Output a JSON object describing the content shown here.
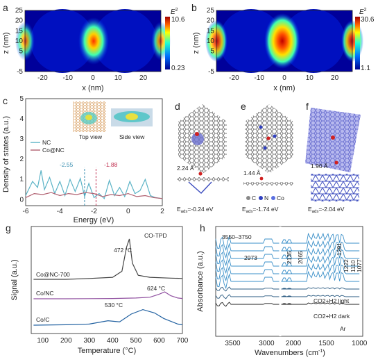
{
  "panels": {
    "a": {
      "label": "a",
      "xlabel": "x (nm)",
      "ylabel": "z (nm)",
      "xticks": [
        "-20",
        "-10",
        "0",
        "10",
        "20"
      ],
      "yticks": [
        "25",
        "20",
        "15",
        "10",
        "5",
        "-5"
      ],
      "colorbar": {
        "title": "E",
        "title_sup": "2",
        "max": "10.6",
        "min": "0.23"
      }
    },
    "b": {
      "label": "b",
      "xlabel": "x (nm)",
      "ylabel": "z (nm)",
      "xticks": [
        "-20",
        "-10",
        "0",
        "10",
        "20"
      ],
      "yticks": [
        "25",
        "20",
        "15",
        "10",
        "5",
        "-5"
      ],
      "colorbar": {
        "title": "E",
        "title_sup": "2",
        "max": "30.6",
        "min": "1.1"
      }
    },
    "c": {
      "label": "c",
      "xlabel": "Energy (eV)",
      "ylabel": "Density of states (a.u.)",
      "xticks": [
        "-6",
        "-4",
        "-2",
        "0",
        "2"
      ],
      "yticks": [
        "5",
        "4",
        "3",
        "2",
        "1",
        "0"
      ],
      "legend": [
        "NC",
        "Co@NC"
      ],
      "annot_nc": "-2.55",
      "annot_co": "-1.88",
      "top_view": "Top view",
      "side_view": "Side view"
    },
    "d": {
      "label": "d",
      "distance": "2.24 Å",
      "eads": "=-0.24 eV"
    },
    "e": {
      "label": "e",
      "distance": "1.44 Å",
      "eads": "=-1.74 eV",
      "legend": [
        "C",
        "N",
        "Co"
      ]
    },
    "f": {
      "label": "f",
      "distance": "1.90 Å",
      "eads": "=-2.04 eV"
    },
    "g": {
      "label": "g",
      "xlabel": "Temperature (°C)",
      "ylabel": "Signal (a.u.)",
      "title": "CO-TPD",
      "xticks": [
        "100",
        "200",
        "300",
        "400",
        "500",
        "600",
        "700"
      ],
      "series": [
        "Co@NC-700",
        "Co/NC",
        "Co/C"
      ],
      "peaks": [
        "472 °C",
        "624 °C",
        "530 °C"
      ]
    },
    "h": {
      "label": "h",
      "xlabel": "Wavenumbers (cm",
      "xlabel_sup": "-1",
      "xlabel_end": ")",
      "ylabel": "Absorbance (a.u.)",
      "xticks": [
        "3500",
        "3000",
        "2000",
        "1500",
        "1000"
      ],
      "annotations": [
        "3550–3750",
        "2973",
        "2135",
        "2065",
        "1291",
        "1222",
        "1110",
        "1077"
      ],
      "cond_light": "CO2+H2 light",
      "cond_dark": "CO2+H2 dark",
      "cond_ar": "Ar"
    }
  },
  "eads_label": "E",
  "eads_sub": "ads",
  "chart_data": [
    {
      "type": "line",
      "panel": "c",
      "xlabel": "Energy (eV)",
      "ylabel": "Density of states (a.u.)",
      "xlim": [
        -6,
        2
      ],
      "ylim": [
        -0.3,
        5
      ],
      "series": [
        {
          "name": "NC",
          "x": [
            -6,
            -5.6,
            -5.3,
            -5.1,
            -4.9,
            -4.6,
            -4.3,
            -4.0,
            -3.7,
            -3.4,
            -3.1,
            -2.8,
            -2.55,
            -2.3,
            -2.0,
            -1.7,
            -1.4,
            -1.1,
            -0.8,
            -0.5,
            -0.2,
            0.1,
            0.4,
            0.7,
            1.0,
            1.3,
            1.6,
            2.0
          ],
          "y": [
            0.2,
            0.9,
            0.6,
            1.45,
            0.5,
            1.1,
            0.3,
            0.9,
            0.2,
            1.0,
            0.4,
            1.05,
            0.15,
            0.8,
            0.1,
            0.3,
            0.05,
            0.95,
            0.2,
            0.6,
            0.15,
            0.9,
            0.3,
            0.45,
            1.0,
            0.2,
            0.1,
            0.05
          ]
        },
        {
          "name": "Co@NC",
          "x": [
            -6,
            -5.5,
            -5.0,
            -4.5,
            -4.0,
            -3.5,
            -3.0,
            -2.5,
            -2.0,
            -1.5,
            -1.0,
            -0.5,
            0,
            0.5,
            1.0,
            1.5,
            2.0
          ],
          "y": [
            0.1,
            0.3,
            0.25,
            0.35,
            0.2,
            0.3,
            0.25,
            0.35,
            0.3,
            0.15,
            0.25,
            0.2,
            0.3,
            0.15,
            0.2,
            0.1,
            0.05
          ]
        }
      ],
      "vlines": [
        -2.55,
        -1.88
      ]
    },
    {
      "type": "line",
      "panel": "g",
      "title": "CO-TPD",
      "xlabel": "Temperature (°C)",
      "ylabel": "Signal (a.u.)",
      "xlim": [
        50,
        700
      ],
      "series": [
        {
          "name": "Co@NC-700",
          "x": [
            60,
            200,
            300,
            400,
            440,
            460,
            472,
            485,
            510,
            560,
            650,
            700
          ],
          "y": [
            0.0,
            0.0,
            0.02,
            0.05,
            0.2,
            0.8,
            1.0,
            0.4,
            0.1,
            0.05,
            0.03,
            0.02
          ]
        },
        {
          "name": "Co/NC",
          "x": [
            60,
            200,
            400,
            500,
            560,
            600,
            624,
            650,
            680,
            700
          ],
          "y": [
            0,
            0,
            0.02,
            0.05,
            0.1,
            0.3,
            0.45,
            0.2,
            0.05,
            0.02
          ]
        },
        {
          "name": "Co/C",
          "x": [
            60,
            200,
            300,
            380,
            430,
            480,
            530,
            580,
            620,
            680,
            700
          ],
          "y": [
            0,
            0.02,
            0.05,
            0.2,
            0.15,
            0.5,
            0.7,
            0.55,
            0.3,
            0.05,
            0.02
          ]
        }
      ]
    }
  ]
}
